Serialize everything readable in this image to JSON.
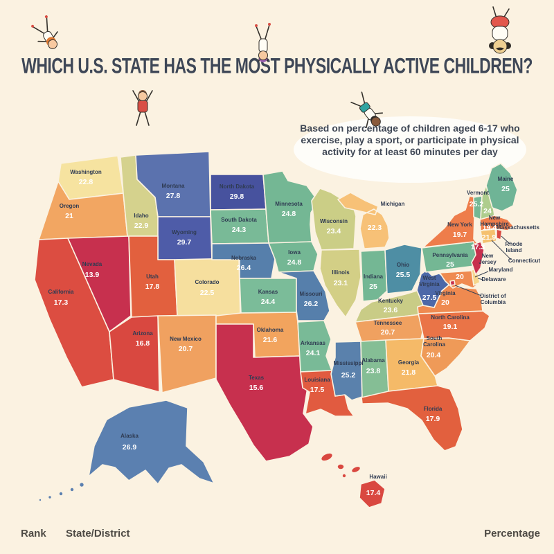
{
  "page": {
    "background": "#FBF2E1"
  },
  "header": {
    "title": "WHICH U.S. STATE HAS THE MOST PHYSICALLY ACTIVE CHILDREN?",
    "color": "#3E4757"
  },
  "bubble": {
    "text": "Based on percentage of children aged 6-17 who exercise, play a sport, or participate in physical activity for at least 60 minutes per day",
    "text_color": "#3E4654"
  },
  "decorations": {
    "kids": [
      "cartwheel-kid",
      "handstand-kid",
      "upside-down-kid",
      "jumping-kid",
      "tumbling-kid"
    ]
  },
  "map": {
    "label_color": "#2F3B52",
    "value_color": "#FFFFFF",
    "leader_line_color": "#3A4352",
    "border_color": "#FBF2E1"
  },
  "footer": {
    "columns": [
      "Rank",
      "State/District",
      "Percentage"
    ],
    "color": "#4D4A44"
  },
  "chart_data": {
    "type": "choropleth_map",
    "title": "Which U.S. state has the most physically active children?",
    "region": "United States",
    "value_format": "percent",
    "states": [
      {
        "name": "Washington",
        "value": "22.8",
        "color": "#F6E3A0"
      },
      {
        "name": "Oregon",
        "value": "21",
        "color": "#F2A662"
      },
      {
        "name": "California",
        "value": "17.3",
        "color": "#DC4D41"
      },
      {
        "name": "Nevada",
        "value": "13.9",
        "color": "#C7304E"
      },
      {
        "name": "Idaho",
        "value": "22.9",
        "color": "#D5D28D"
      },
      {
        "name": "Montana",
        "value": "27.8",
        "color": "#5B72AE"
      },
      {
        "name": "Wyoming",
        "value": "29.7",
        "color": "#4E5CA8"
      },
      {
        "name": "Utah",
        "value": "17.8",
        "color": "#E2603E"
      },
      {
        "name": "Colorado",
        "value": "22.5",
        "color": "#F6DF9E"
      },
      {
        "name": "Arizona",
        "value": "16.8",
        "color": "#D94840"
      },
      {
        "name": "New Mexico",
        "value": "20.7",
        "color": "#F0A160"
      },
      {
        "name": "North Dakota",
        "value": "29.8",
        "color": "#47529E"
      },
      {
        "name": "South Dakota",
        "value": "24.3",
        "color": "#79BA97"
      },
      {
        "name": "Nebraska",
        "value": "26.4",
        "color": "#567FAB"
      },
      {
        "name": "Kansas",
        "value": "24.4",
        "color": "#7BBC99"
      },
      {
        "name": "Oklahoma",
        "value": "21.6",
        "color": "#F2A45E"
      },
      {
        "name": "Texas",
        "value": "15.6",
        "color": "#C7304E"
      },
      {
        "name": "Minnesota",
        "value": "24.8",
        "color": "#74B794"
      },
      {
        "name": "Iowa",
        "value": "24.8",
        "color": "#74B794"
      },
      {
        "name": "Missouri",
        "value": "26.2",
        "color": "#567FAB"
      },
      {
        "name": "Arkansas",
        "value": "24.1",
        "color": "#79BA97"
      },
      {
        "name": "Louisiana",
        "value": "17.5",
        "color": "#E15B40"
      },
      {
        "name": "Wisconsin",
        "value": "23.4",
        "color": "#CBCE86"
      },
      {
        "name": "Illinois",
        "value": "23.1",
        "color": "#D3CF86"
      },
      {
        "name": "Michigan",
        "value": "22.3",
        "color": "#F7C177"
      },
      {
        "name": "Indiana",
        "value": "25",
        "color": "#74B794"
      },
      {
        "name": "Ohio",
        "value": "25.5",
        "color": "#4E8EA4"
      },
      {
        "name": "Kentucky",
        "value": "23.6",
        "color": "#C9CC86"
      },
      {
        "name": "Tennessee",
        "value": "20.7",
        "color": "#F0A160"
      },
      {
        "name": "Mississippi",
        "value": "25.2",
        "color": "#5A81AC"
      },
      {
        "name": "Alabama",
        "value": "23.8",
        "color": "#85BE95"
      },
      {
        "name": "Georgia",
        "value": "21.8",
        "color": "#F5BA68"
      },
      {
        "name": "Florida",
        "value": "17.9",
        "color": "#E2603E"
      },
      {
        "name": "South Carolina",
        "value": "20.4",
        "color": "#EF9A58"
      },
      {
        "name": "North Carolina",
        "value": "19.1",
        "color": "#EA7447"
      },
      {
        "name": "Virginia",
        "value": "20",
        "color": "#EF8A50"
      },
      {
        "name": "West Virginia",
        "value": "27.5",
        "color": "#4C68A8"
      },
      {
        "name": "Maryland",
        "value": "20",
        "color": "#EF8A50"
      },
      {
        "name": "Delaware",
        "value": "",
        "color": "#F6D68C"
      },
      {
        "name": "District of Columbia",
        "value": "",
        "color": "#C7304E"
      },
      {
        "name": "Pennsylvania",
        "value": "25",
        "color": "#74B794"
      },
      {
        "name": "New Jersey",
        "value": "17.3",
        "color": "#C7304E"
      },
      {
        "name": "New York",
        "value": "19.7",
        "color": "#EE7D4B"
      },
      {
        "name": "Connecticut",
        "value": "21.9",
        "color": "#F5C06E"
      },
      {
        "name": "Rhode Island",
        "value": "",
        "color": "#D94840"
      },
      {
        "name": "Massachussetts",
        "value": "19.4",
        "color": "#EE7D4B"
      },
      {
        "name": "Vermont",
        "value": "25.2",
        "color": "#74B794"
      },
      {
        "name": "New Hampshire",
        "value": "24",
        "color": "#AECD8D"
      },
      {
        "name": "Maine",
        "value": "25",
        "color": "#6FB496"
      },
      {
        "name": "Alaska",
        "value": "26.9",
        "color": "#5B80B0"
      },
      {
        "name": "Hawaii",
        "value": "17.4",
        "color": "#D94840"
      }
    ]
  }
}
